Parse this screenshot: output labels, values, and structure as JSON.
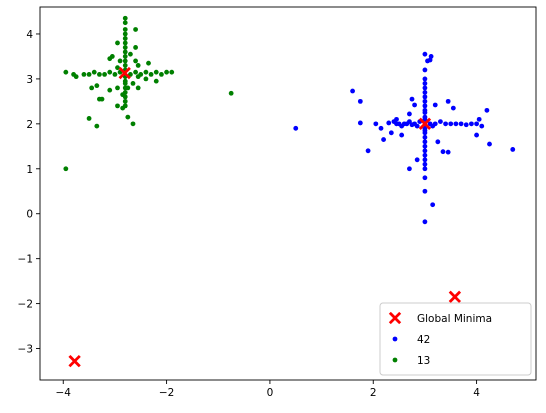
{
  "chart_data": {
    "type": "scatter",
    "title": "",
    "xlabel": "",
    "ylabel": "",
    "xlim": [
      -4.45,
      5.15
    ],
    "ylim": [
      -3.7,
      4.6
    ],
    "xticks": [
      -4,
      -2,
      0,
      2,
      4
    ],
    "yticks": [
      -3,
      -2,
      -1,
      0,
      1,
      2,
      3,
      4
    ],
    "xtick_labels": [
      "−4",
      "−2",
      "0",
      "2",
      "4"
    ],
    "ytick_labels": [
      "−3",
      "−2",
      "−1",
      "0",
      "1",
      "2",
      "3",
      "4"
    ],
    "grid": false,
    "legend_position": "lower-right",
    "series": [
      {
        "name": "Global Minima",
        "color": "#ff0000",
        "marker": "x-filled",
        "points": [
          [
            -3.78,
            -3.28
          ],
          [
            3.58,
            -1.85
          ],
          [
            -2.81,
            3.13
          ],
          [
            3.0,
            2.0
          ]
        ]
      },
      {
        "name": "42",
        "color": "#0000ff",
        "marker": "circle",
        "points": [
          [
            3.0,
            3.55
          ],
          [
            3.05,
            3.4
          ],
          [
            3.1,
            3.42
          ],
          [
            3.12,
            3.5
          ],
          [
            3.0,
            3.2
          ],
          [
            3.0,
            3.0
          ],
          [
            3.0,
            2.9
          ],
          [
            3.0,
            2.8
          ],
          [
            3.0,
            2.7
          ],
          [
            3.0,
            2.6
          ],
          [
            3.0,
            2.5
          ],
          [
            3.0,
            2.4
          ],
          [
            3.0,
            2.3
          ],
          [
            3.0,
            2.25
          ],
          [
            3.0,
            2.15
          ],
          [
            3.0,
            2.1
          ],
          [
            3.0,
            1.9
          ],
          [
            3.0,
            1.85
          ],
          [
            3.0,
            1.8
          ],
          [
            3.0,
            1.7
          ],
          [
            3.0,
            1.6
          ],
          [
            3.0,
            1.5
          ],
          [
            3.0,
            1.4
          ],
          [
            3.0,
            1.3
          ],
          [
            3.0,
            1.2
          ],
          [
            3.0,
            1.1
          ],
          [
            3.0,
            1.0
          ],
          [
            3.0,
            0.8
          ],
          [
            3.0,
            0.5
          ],
          [
            3.0,
            -0.18
          ],
          [
            3.15,
            0.2
          ],
          [
            1.6,
            2.73
          ],
          [
            1.75,
            2.5
          ],
          [
            1.9,
            1.4
          ],
          [
            2.8,
            2.42
          ],
          [
            2.7,
            2.22
          ],
          [
            2.75,
            2.55
          ],
          [
            3.55,
            2.35
          ],
          [
            3.2,
            2.42
          ],
          [
            2.3,
            2.02
          ],
          [
            2.4,
            2.05
          ],
          [
            2.45,
            2.1
          ],
          [
            2.5,
            2.0
          ],
          [
            2.55,
            1.95
          ],
          [
            2.6,
            2.0
          ],
          [
            2.65,
            2.0
          ],
          [
            2.7,
            2.05
          ],
          [
            2.75,
            1.98
          ],
          [
            2.8,
            2.0
          ],
          [
            2.85,
            1.95
          ],
          [
            2.9,
            2.05
          ],
          [
            3.1,
            2.0
          ],
          [
            3.15,
            1.95
          ],
          [
            3.2,
            2.0
          ],
          [
            3.3,
            2.05
          ],
          [
            3.4,
            2.0
          ],
          [
            3.5,
            2.0
          ],
          [
            3.6,
            2.0
          ],
          [
            3.7,
            2.0
          ],
          [
            3.8,
            1.98
          ],
          [
            4.0,
            2.0
          ],
          [
            4.05,
            2.1
          ],
          [
            4.1,
            1.95
          ],
          [
            4.0,
            1.75
          ],
          [
            4.25,
            1.55
          ],
          [
            4.2,
            2.3
          ],
          [
            4.7,
            1.43
          ],
          [
            1.75,
            2.02
          ],
          [
            2.35,
            1.8
          ],
          [
            2.55,
            1.75
          ],
          [
            2.2,
            1.65
          ],
          [
            3.35,
            1.38
          ],
          [
            3.45,
            1.37
          ],
          [
            2.7,
            1.0
          ],
          [
            2.85,
            1.2
          ],
          [
            0.5,
            1.9
          ],
          [
            3.45,
            2.5
          ],
          [
            3.9,
            2.0
          ],
          [
            2.15,
            1.9
          ],
          [
            2.05,
            2.0
          ],
          [
            2.45,
            2.0
          ],
          [
            3.25,
            1.6
          ]
        ]
      },
      {
        "name": "13",
        "color": "#008000",
        "marker": "circle",
        "points": [
          [
            -2.8,
            4.35
          ],
          [
            -2.8,
            4.25
          ],
          [
            -2.8,
            4.1
          ],
          [
            -2.8,
            4.0
          ],
          [
            -2.8,
            3.9
          ],
          [
            -2.8,
            3.8
          ],
          [
            -2.8,
            3.7
          ],
          [
            -2.8,
            3.6
          ],
          [
            -2.8,
            3.5
          ],
          [
            -2.8,
            3.4
          ],
          [
            -2.8,
            3.3
          ],
          [
            -2.8,
            3.2
          ],
          [
            -2.8,
            3.05
          ],
          [
            -2.8,
            2.95
          ],
          [
            -2.8,
            2.9
          ],
          [
            -2.8,
            2.8
          ],
          [
            -2.8,
            2.7
          ],
          [
            -2.8,
            2.6
          ],
          [
            -2.8,
            2.5
          ],
          [
            -2.8,
            2.4
          ],
          [
            -2.75,
            2.8
          ],
          [
            -2.85,
            2.65
          ],
          [
            -2.95,
            2.8
          ],
          [
            -2.6,
            4.1
          ],
          [
            -2.95,
            3.8
          ],
          [
            -3.05,
            3.5
          ],
          [
            -3.1,
            3.45
          ],
          [
            -2.9,
            3.4
          ],
          [
            -2.6,
            3.4
          ],
          [
            -2.55,
            3.3
          ],
          [
            -3.95,
            3.15
          ],
          [
            -3.8,
            3.1
          ],
          [
            -3.75,
            3.05
          ],
          [
            -3.6,
            3.1
          ],
          [
            -3.5,
            3.1
          ],
          [
            -3.4,
            3.15
          ],
          [
            -3.3,
            3.1
          ],
          [
            -3.2,
            3.1
          ],
          [
            -3.1,
            3.15
          ],
          [
            -3.0,
            3.1
          ],
          [
            -2.9,
            3.15
          ],
          [
            -2.7,
            3.1
          ],
          [
            -2.6,
            3.15
          ],
          [
            -2.5,
            3.1
          ],
          [
            -2.4,
            3.15
          ],
          [
            -2.3,
            3.1
          ],
          [
            -2.2,
            3.15
          ],
          [
            -2.1,
            3.1
          ],
          [
            -2.0,
            3.15
          ],
          [
            -1.9,
            3.15
          ],
          [
            -2.35,
            3.35
          ],
          [
            -2.2,
            2.95
          ],
          [
            -3.45,
            2.8
          ],
          [
            -3.35,
            2.85
          ],
          [
            -3.1,
            2.75
          ],
          [
            -3.3,
            2.55
          ],
          [
            -3.25,
            2.55
          ],
          [
            -2.95,
            2.4
          ],
          [
            -2.85,
            2.35
          ],
          [
            -2.75,
            2.15
          ],
          [
            -2.65,
            2.0
          ],
          [
            -3.35,
            1.95
          ],
          [
            -3.5,
            2.12
          ],
          [
            -2.55,
            2.8
          ],
          [
            -2.6,
            3.7
          ],
          [
            -2.7,
            3.55
          ],
          [
            -2.4,
            3.0
          ],
          [
            -0.75,
            2.68
          ],
          [
            -3.95,
            1.0
          ],
          [
            -2.65,
            2.9
          ],
          [
            -2.95,
            3.25
          ],
          [
            -2.55,
            3.05
          ]
        ]
      }
    ]
  }
}
